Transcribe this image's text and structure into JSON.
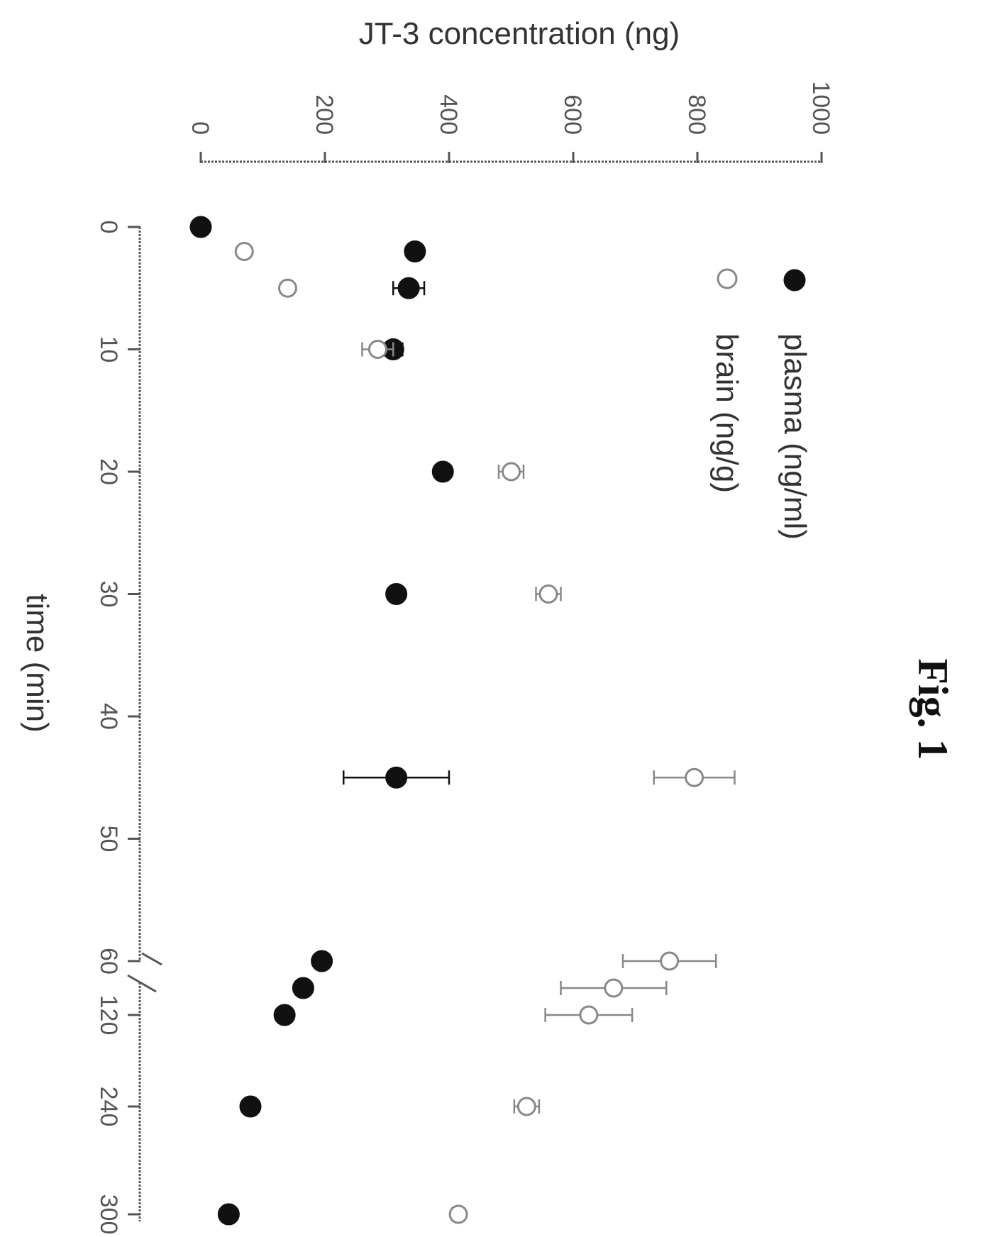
{
  "figure_label": "Fig. 1",
  "chart_data": {
    "type": "scatter",
    "ylabel": "JT-3 concentration (ng)",
    "xlabel": "time (min)",
    "y_ticks": [
      "0",
      "200",
      "400",
      "600",
      "800",
      "1000"
    ],
    "ylim": [
      0,
      1000
    ],
    "x_ticks": [
      "0",
      "10",
      "20",
      "30",
      "40",
      "50",
      "60",
      "120",
      "240",
      "300"
    ],
    "x_axis_break_between": [
      "60",
      "120"
    ],
    "grid": false,
    "error_bars": true,
    "legend_position": "top-right",
    "series": [
      {
        "name": "plasma (ng/ml)",
        "marker": "filled-circle",
        "color": "#111111",
        "points": [
          {
            "x": 0,
            "y": 0,
            "err": 0
          },
          {
            "x": 2,
            "y": 345,
            "err": 10
          },
          {
            "x": 5,
            "y": 335,
            "err": 25
          },
          {
            "x": 10,
            "y": 310,
            "err": 15
          },
          {
            "x": 20,
            "y": 390,
            "err": 10
          },
          {
            "x": 30,
            "y": 315,
            "err": 10
          },
          {
            "x": 45,
            "y": 315,
            "err": 85
          },
          {
            "x": 60,
            "y": 195,
            "err": 5
          },
          {
            "x": 90,
            "y": 165,
            "err": 5
          },
          {
            "x": 120,
            "y": 135,
            "err": 5
          },
          {
            "x": 240,
            "y": 80,
            "err": 5
          },
          {
            "x": 300,
            "y": 45,
            "err": 5
          }
        ]
      },
      {
        "name": "brain (ng/g)",
        "marker": "open-circle",
        "color": "#888888",
        "points": [
          {
            "x": 2,
            "y": 70,
            "err": 0
          },
          {
            "x": 5,
            "y": 140,
            "err": 5
          },
          {
            "x": 10,
            "y": 285,
            "err": 25
          },
          {
            "x": 20,
            "y": 500,
            "err": 20
          },
          {
            "x": 30,
            "y": 560,
            "err": 20
          },
          {
            "x": 45,
            "y": 795,
            "err": 65
          },
          {
            "x": 60,
            "y": 755,
            "err": 75
          },
          {
            "x": 90,
            "y": 665,
            "err": 85
          },
          {
            "x": 120,
            "y": 625,
            "err": 70
          },
          {
            "x": 240,
            "y": 525,
            "err": 20
          },
          {
            "x": 300,
            "y": 415,
            "err": 10
          }
        ]
      }
    ]
  }
}
